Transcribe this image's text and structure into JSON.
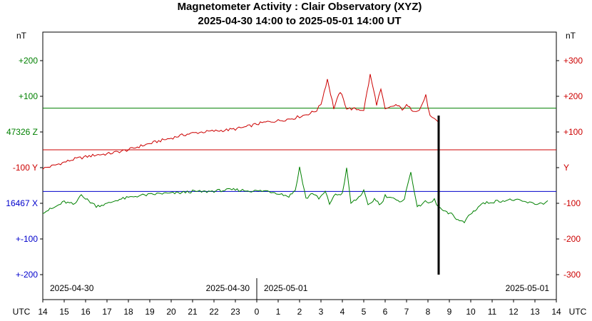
{
  "header": {
    "title": "Magnetometer Activity : Clair Observatory (XYZ)",
    "subtitle": "2025-04-30 14:00 to 2025-05-01 14:00 UT"
  },
  "axes": {
    "left_unit": "nT",
    "right_unit": "nT",
    "x_unit": "UTC",
    "left_labels": [
      {
        "text": "+200",
        "color": "#008000",
        "row": 0
      },
      {
        "text": "+100",
        "color": "#008000",
        "row": 1
      },
      {
        "text": "47326 Z",
        "color": "#008000",
        "row": 2
      },
      {
        "text": "-100  Y",
        "color": "#cc0000",
        "row": 3
      },
      {
        "text": "16467 X",
        "color": "#0000cc",
        "row": 4
      },
      {
        "text": "+-100",
        "color": "#0000cc",
        "row": 5
      },
      {
        "text": "+-200",
        "color": "#0000cc",
        "row": 6
      }
    ],
    "right_labels": [
      {
        "text": "+300",
        "row": 0
      },
      {
        "text": "+200",
        "row": 1
      },
      {
        "text": "+100",
        "row": 2
      },
      {
        "text": "Y",
        "row": 3
      },
      {
        "text": "-100",
        "row": 4
      },
      {
        "text": "-200",
        "row": 5
      },
      {
        "text": "-300",
        "row": 6
      }
    ],
    "right_color": "#cc0000",
    "x_ticks": [
      "14",
      "15",
      "16",
      "17",
      "18",
      "19",
      "20",
      "21",
      "22",
      "23",
      "0",
      "1",
      "2",
      "3",
      "4",
      "5",
      "6",
      "7",
      "8",
      "9",
      "10",
      "11",
      "12",
      "13",
      "14"
    ],
    "date_labels": [
      "2025-04-30",
      "2025-04-30",
      "2025-05-01",
      "2025-05-01"
    ]
  },
  "colors": {
    "z": "#008000",
    "y": "#cc0000",
    "x": "#0000cc",
    "marker": "#000000",
    "frame": "#000000"
  },
  "chart_data": {
    "type": "line",
    "title": "Magnetometer Activity : Clair Observatory (XYZ)",
    "xlabel": "UTC",
    "ylabel": "nT",
    "x_range_hours": [
      0,
      24
    ],
    "y_range_nT": [
      -300,
      300
    ],
    "grid": false,
    "baselines": [
      {
        "name": "Z",
        "value_nT": 100
      },
      {
        "name": "Y",
        "value_nT": 0
      },
      {
        "name": "X",
        "value_nT": -100
      }
    ],
    "current_time_hours": 18.5,
    "series": [
      {
        "name": "Y",
        "color": "#cc0000",
        "x": [
          0,
          0.5,
          1,
          1.5,
          2,
          2.5,
          3,
          3.5,
          4,
          4.5,
          5,
          5.5,
          6,
          6.5,
          7,
          7.5,
          8,
          8.5,
          9,
          9.5,
          10,
          10.5,
          11,
          11.5,
          11.8,
          12,
          12.5,
          12.8,
          13,
          13.3,
          13.6,
          13.9,
          14.2,
          14.5,
          15,
          15.3,
          15.6,
          15.8,
          16,
          16.5,
          16.8,
          17,
          17.3,
          17.6,
          17.9,
          18.1,
          18.3,
          18.5
        ],
        "values": [
          -45,
          -38,
          -30,
          -22,
          -17,
          -12,
          -10,
          -5,
          0,
          8,
          15,
          22,
          28,
          35,
          40,
          43,
          45,
          47,
          50,
          55,
          62,
          67,
          70,
          74,
          77,
          80,
          88,
          95,
          110,
          170,
          100,
          140,
          100,
          98,
          96,
          180,
          110,
          145,
          96,
          108,
          98,
          106,
          95,
          95,
          130,
          80,
          72,
          66
        ]
      },
      {
        "name": "X",
        "color": "#008000",
        "x": [
          0,
          0.5,
          1,
          1.5,
          1.8,
          2,
          2.3,
          2.5,
          3,
          3.5,
          4,
          4.5,
          5,
          5.5,
          6,
          6.5,
          7,
          7.5,
          8,
          8.5,
          9,
          9.5,
          10,
          10.5,
          11,
          11.5,
          11.8,
          12,
          12.3,
          12.6,
          12.9,
          13.2,
          13.4,
          13.6,
          14,
          14.2,
          14.4,
          14.7,
          15,
          15.2,
          15.5,
          15.8,
          16,
          16.3,
          16.6,
          16.9,
          17.2,
          17.5,
          17.8,
          18.1,
          18.3,
          18.5,
          18.8,
          19.1,
          19.4,
          19.7,
          19.9,
          20.2,
          20.5,
          21,
          21.5,
          22,
          22.5,
          23,
          23.4,
          23.6
        ],
        "values": [
          -150,
          -140,
          -125,
          -132,
          -105,
          -118,
          -128,
          -135,
          -130,
          -120,
          -115,
          -110,
          -108,
          -105,
          -105,
          -103,
          -100,
          -101,
          -99,
          -97,
          -96,
          -98,
          -99,
          -99,
          -104,
          -112,
          -97,
          -42,
          -118,
          -103,
          -118,
          -101,
          -130,
          -110,
          -105,
          -46,
          -128,
          -118,
          -99,
          -135,
          -118,
          -132,
          -110,
          -115,
          -125,
          -118,
          -52,
          -140,
          -125,
          -128,
          -120,
          -138,
          -150,
          -155,
          -168,
          -175,
          -158,
          -145,
          -130,
          -125,
          -122,
          -120,
          -125,
          -130,
          -128,
          -122
        ]
      }
    ]
  }
}
